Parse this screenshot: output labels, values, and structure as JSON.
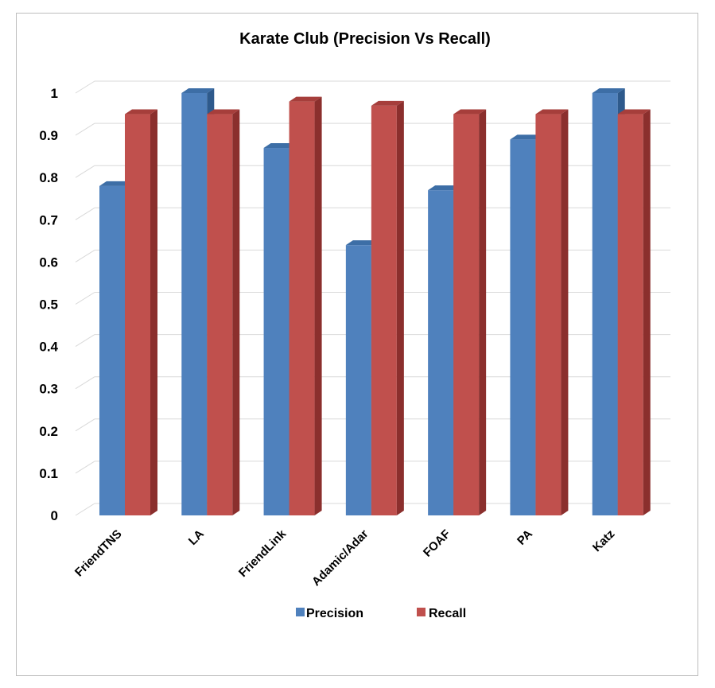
{
  "chart_data": {
    "type": "bar",
    "title": "Karate Club (Precision Vs Recall)",
    "xlabel": "",
    "ylabel": "",
    "categories": [
      "FriendTNS",
      "LA",
      "FriendLink",
      "Adamic/Adar",
      "FOAF",
      "PA",
      "Katz"
    ],
    "series": [
      {
        "name": "Precision",
        "values": [
          0.78,
          1.0,
          0.87,
          0.64,
          0.77,
          0.89,
          1.0
        ]
      },
      {
        "name": "Recall",
        "values": [
          0.95,
          0.95,
          0.98,
          0.97,
          0.95,
          0.95,
          0.95
        ]
      }
    ],
    "ylim": [
      0,
      1
    ],
    "yticks": [
      "0",
      "0.1",
      "0.2",
      "0.3",
      "0.4",
      "0.5",
      "0.6",
      "0.7",
      "0.8",
      "0.9",
      "1"
    ],
    "grid": true,
    "legend_position": "bottom",
    "bar_style": "3d-column"
  },
  "colors": {
    "precision_front": "#4f81bd",
    "precision_side": "#2e5a8c",
    "precision_top": "#3d6ea6",
    "recall_front": "#c0504d",
    "recall_side": "#8b2f2d",
    "recall_top": "#a63e3b",
    "grid": "#d9d9d9"
  }
}
